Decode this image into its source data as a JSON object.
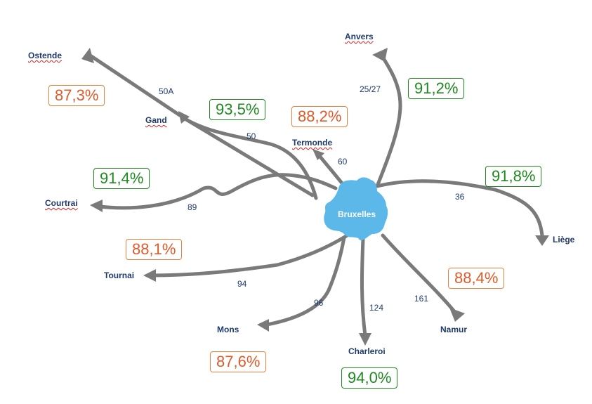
{
  "hub": {
    "label": "Bruxelles",
    "color": "#5bb8e8"
  },
  "colors": {
    "line": "#7a7a7a",
    "city": "#1f3a6e",
    "green": "#1e8a1e",
    "orange": "#e05a2a"
  },
  "cities": {
    "anvers": "Anvers",
    "ostende": "Ostende",
    "gand": "Gand",
    "termonde": "Termonde",
    "courtrai": "Courtrai",
    "tournai": "Tournai",
    "mons": "Mons",
    "charleroi": "Charleroi",
    "namur": "Namur",
    "liege": "Liège"
  },
  "lines": {
    "anvers": "25/27",
    "ostende": "50A",
    "gand": "50",
    "termonde": "60",
    "courtrai": "89",
    "tournai": "94",
    "mons": "96",
    "charleroi": "124",
    "namur": "161",
    "liege": "36"
  },
  "punctuality": {
    "ostende": {
      "value": "87,3%",
      "status": "orange"
    },
    "gand": {
      "value": "93,5%",
      "status": "green"
    },
    "termonde": {
      "value": "88,2%",
      "status": "orange"
    },
    "anvers": {
      "value": "91,2%",
      "status": "green"
    },
    "courtrai": {
      "value": "91,4%",
      "status": "green"
    },
    "liege": {
      "value": "91,8%",
      "status": "green"
    },
    "tournai": {
      "value": "88,1%",
      "status": "orange"
    },
    "namur": {
      "value": "88,4%",
      "status": "orange"
    },
    "mons": {
      "value": "87,6%",
      "status": "orange"
    },
    "charleroi": {
      "value": "94,0%",
      "status": "green"
    }
  }
}
